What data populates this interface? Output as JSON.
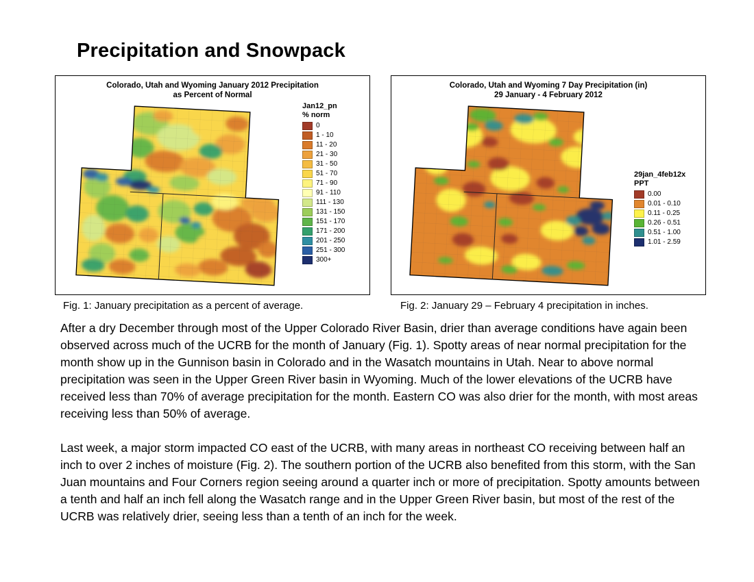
{
  "page": {
    "title": "Precipitation and Snowpack"
  },
  "fig1": {
    "title_line1": "Colorado, Utah and Wyoming January 2012 Precipitation",
    "title_line2": "as Percent of Normal",
    "legend_title": "Jan12_pn",
    "legend_subtitle": "% norm",
    "legend": [
      {
        "label": "0",
        "color": "#a23b28"
      },
      {
        "label": "1 - 10",
        "color": "#c05d25"
      },
      {
        "label": "11 - 20",
        "color": "#d97b2b"
      },
      {
        "label": "21 - 30",
        "color": "#eda13c"
      },
      {
        "label": "31 - 50",
        "color": "#f4bc42"
      },
      {
        "label": "51 - 70",
        "color": "#f9d64b"
      },
      {
        "label": "71 - 90",
        "color": "#fdf37e"
      },
      {
        "label": "91 - 110",
        "color": "#ffffb3"
      },
      {
        "label": "111 - 130",
        "color": "#d3e88a"
      },
      {
        "label": "131 - 150",
        "color": "#9ccd5a"
      },
      {
        "label": "151 - 170",
        "color": "#5fb54a"
      },
      {
        "label": "171 - 200",
        "color": "#34a06d"
      },
      {
        "label": "201 - 250",
        "color": "#2f8fa3"
      },
      {
        "label": "251 - 300",
        "color": "#2b5fa5"
      },
      {
        "label": "300+",
        "color": "#1d2f6f"
      }
    ],
    "caption": "Fig. 1: January precipitation as a percent of average."
  },
  "fig2": {
    "title_line1": "Colorado, Utah and Wyoming 7 Day Precipitation (in)",
    "title_line2": "29 January - 4 February 2012",
    "legend_title": "29jan_4feb12x",
    "legend_subtitle": "PPT",
    "legend": [
      {
        "label": "0.00",
        "color": "#a23b28"
      },
      {
        "label": "0.01 - 0.10",
        "color": "#e1862e"
      },
      {
        "label": "0.11 - 0.25",
        "color": "#fdf24b"
      },
      {
        "label": "0.26 - 0.51",
        "color": "#58b434"
      },
      {
        "label": "0.51 - 1.00",
        "color": "#2f8f8f"
      },
      {
        "label": "1.01 - 2.59",
        "color": "#1d2f6f"
      }
    ],
    "caption": "Fig. 2:  January 29 – February 4 precipitation in inches."
  },
  "body": {
    "paragraph1": "After a dry December through most of the Upper Colorado River Basin, drier than average conditions have again been observed across much of the UCRB for the month of January (Fig. 1).  Spotty areas of near normal precipitation for the month show up in the Gunnison basin in Colorado and in the Wasatch mountains in Utah.  Near to above normal precipitation was seen in the Upper Green River basin in Wyoming.  Much of the lower elevations of the UCRB have received less than 70% of average precipitation for the month.  Eastern CO was also drier for the month, with most areas receiving less than 50% of average.",
    "paragraph2": "Last week, a major storm impacted CO east of the UCRB, with many areas in northeast CO receiving between half an inch to over 2 inches of moisture (Fig. 2).  The southern portion of the UCRB also benefited from this storm, with the San Juan mountains and Four Corners region seeing around a quarter inch or more of precipitation.  Spotty amounts between a tenth and half an inch fell along the Wasatch range and in the Upper Green River basin, but most of the rest of the UCRB was relatively drier, seeing less than a tenth of an inch for the week."
  }
}
